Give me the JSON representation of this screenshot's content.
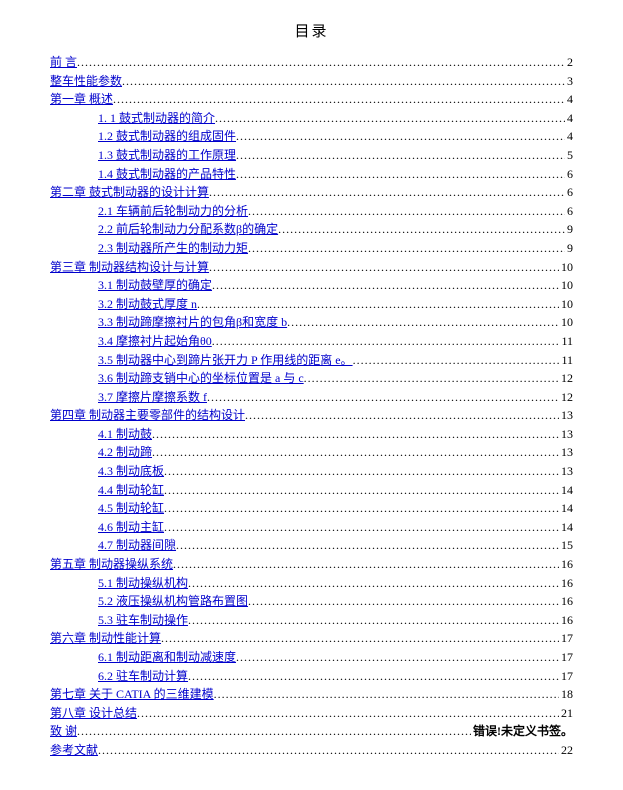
{
  "title": "目录",
  "error_label": "错误!未定义书签。",
  "entries": [
    {
      "label": "前  言",
      "page": "2",
      "indent": false
    },
    {
      "label": "整车性能参数",
      "page": "3",
      "indent": false
    },
    {
      "label": "第一章  概述",
      "page": "4",
      "indent": false
    },
    {
      "label": "1. 1 鼓式制动器的简介",
      "page": "4",
      "indent": true
    },
    {
      "label": "1.2 鼓式制动器的组成固件",
      "page": "4",
      "indent": true
    },
    {
      "label": "1.3 鼓式制动器的工作原理",
      "page": "5",
      "indent": true
    },
    {
      "label": "1.4 鼓式制动器的产品特性",
      "page": "6",
      "indent": true
    },
    {
      "label": "第二章  鼓式制动器的设计计算",
      "page": "6",
      "indent": false
    },
    {
      "label": "2.1 车辆前后轮制动力的分析",
      "page": "6",
      "indent": true
    },
    {
      "label": "2.2  前后轮制动力分配系数β的确定",
      "page": "9",
      "indent": true
    },
    {
      "label": "2.3  制动器所产生的制动力矩",
      "page": "9",
      "indent": true
    },
    {
      "label": "第三章  制动器结构设计与计算",
      "page": "10",
      "indent": false
    },
    {
      "label": "3.1  制动鼓壁厚的确定",
      "page": "10",
      "indent": true
    },
    {
      "label": "3.2 制动鼓式厚度 n",
      "page": "10",
      "indent": true
    },
    {
      "label": "3.3 制动蹄摩擦衬片的包角β和宽度 b",
      "page": "10",
      "indent": true
    },
    {
      "label": "3.4 摩擦衬片起始角θ0",
      "page": "11",
      "indent": true
    },
    {
      "label": "3.5  制动器中心到蹄片张开力 P 作用线的距离 e。",
      "page": "11",
      "indent": true
    },
    {
      "label": "3.6 制动蹄支销中心的坐标位置是 a 与 c",
      "page": "12",
      "indent": true
    },
    {
      "label": "3.7  摩擦片摩擦系数 f",
      "page": "12",
      "indent": true
    },
    {
      "label": "第四章  制动器主要零部件的结构设计",
      "page": "13",
      "indent": false
    },
    {
      "label": "4.1 制动鼓",
      "page": "13",
      "indent": true
    },
    {
      "label": "4.2 制动蹄",
      "page": "13",
      "indent": true
    },
    {
      "label": "4.3 制动底板",
      "page": "13",
      "indent": true
    },
    {
      "label": "4.4 制动轮缸",
      "page": "14",
      "indent": true
    },
    {
      "label": "4.5 制动轮缸",
      "page": "14",
      "indent": true
    },
    {
      "label": "4.6  制动主缸",
      "page": "14",
      "indent": true
    },
    {
      "label": "4.7 制动器间隙",
      "page": "15",
      "indent": true
    },
    {
      "label": "第五章  制动器操纵系统",
      "page": "16",
      "indent": false
    },
    {
      "label": "5.1 制动操纵机构",
      "page": "16",
      "indent": true
    },
    {
      "label": "5.2  液压操纵机构管路布置图",
      "page": "16",
      "indent": true
    },
    {
      "label": "5.3 驻车制动操作",
      "page": "16",
      "indent": true
    },
    {
      "label": "第六章  制动性能计算",
      "page": "17",
      "indent": false
    },
    {
      "label": "6.1 制动距离和制动减速度",
      "page": "17",
      "indent": true
    },
    {
      "label": "6.2  驻车制动计算",
      "page": "17",
      "indent": true
    },
    {
      "label": "第七章  关于 CATIA 的三维建模",
      "page": "18",
      "indent": false
    },
    {
      "label": "第八章  设计总结",
      "page": "21",
      "indent": false
    },
    {
      "label": "致     谢",
      "page": "ERROR",
      "indent": false
    },
    {
      "label": "参考文献",
      "page": "22",
      "indent": false
    }
  ]
}
